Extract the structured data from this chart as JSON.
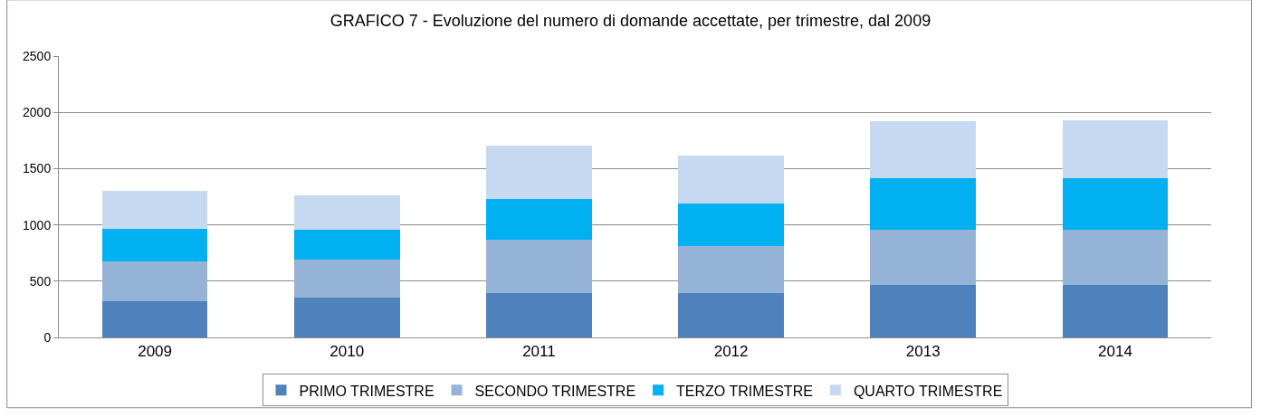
{
  "chart_data": {
    "type": "bar",
    "stacked": true,
    "title": "GRAFICO 7 - Evoluzione del numero di domande accettate, per trimestre, dal 2009",
    "categories": [
      "2009",
      "2010",
      "2011",
      "2012",
      "2013",
      "2014"
    ],
    "series": [
      {
        "name": "PRIMO TRIMESTRE",
        "color": "#4f81bd",
        "values": [
          322,
          356,
          391,
          396,
          468,
          468
        ]
      },
      {
        "name": "SECONDO TRIMESTRE",
        "color": "#95b3d7",
        "values": [
          352,
          336,
          474,
          418,
          489,
          489
        ]
      },
      {
        "name": "TERZO TRIMESTRE",
        "color": "#00b0f0",
        "values": [
          294,
          266,
          366,
          372,
          457,
          457
        ]
      },
      {
        "name": "QUARTO TRIMESTRE",
        "color": "#c6d9f1",
        "values": [
          336,
          304,
          474,
          432,
          507,
          518
        ]
      }
    ],
    "ylim": [
      0,
      2500
    ],
    "yticks": [
      0,
      500,
      1000,
      1500,
      2000,
      2500
    ],
    "grid": "y",
    "legend": "bottom"
  }
}
